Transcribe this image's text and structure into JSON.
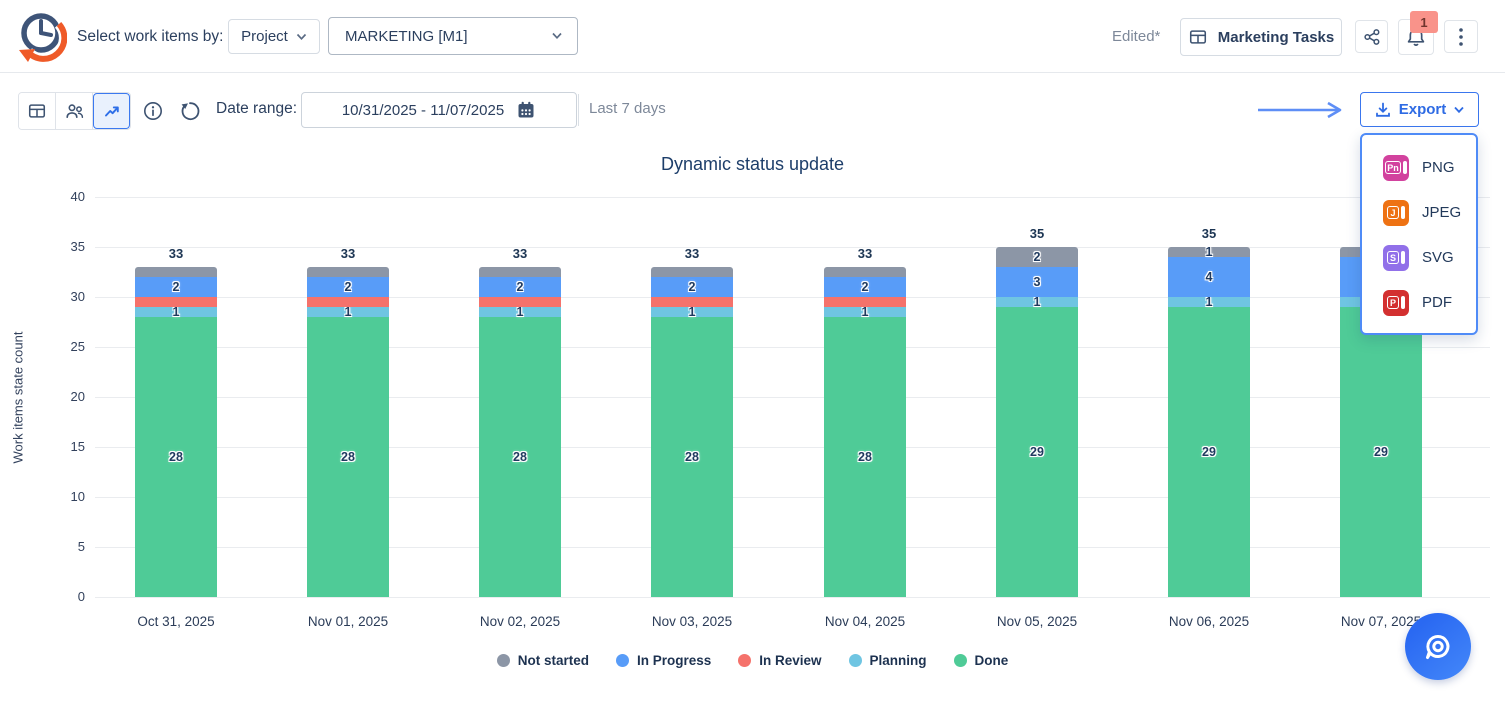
{
  "header": {
    "select_label": "Select work items by:",
    "project_dropdown": "Project",
    "project_value": "MARKETING [M1]",
    "edited_label": "Edited*",
    "board_button": "Marketing Tasks",
    "notification_count": "1"
  },
  "toolbar": {
    "date_range_label": "Date range:",
    "date_range_value": "10/31/2025 - 11/07/2025",
    "last_range_label": "Last 7 days",
    "export_label": "Export"
  },
  "export_menu": {
    "items": [
      {
        "label": "PNG",
        "icon_letters": "Pn",
        "color": "#d2429e"
      },
      {
        "label": "JPEG",
        "icon_letters": "J",
        "color": "#ee7213"
      },
      {
        "label": "SVG",
        "icon_letters": "S",
        "color": "#9170e9"
      },
      {
        "label": "PDF",
        "icon_letters": "P",
        "color": "#d33030"
      }
    ]
  },
  "chart_data": {
    "type": "bar",
    "stacked": true,
    "title": "Dynamic status update",
    "xlabel": "",
    "ylabel": "Work items state count",
    "ylim": [
      0,
      40
    ],
    "yticks": [
      0,
      5,
      10,
      15,
      20,
      25,
      30,
      35,
      40
    ],
    "grid": true,
    "legend_position": "bottom",
    "categories": [
      "Oct 31, 2025",
      "Nov 01, 2025",
      "Nov 02, 2025",
      "Nov 03, 2025",
      "Nov 04, 2025",
      "Nov 05, 2025",
      "Nov 06, 2025",
      "Nov 07, 2025"
    ],
    "totals": [
      33,
      33,
      33,
      33,
      33,
      35,
      35,
      35
    ],
    "series": [
      {
        "name": "Done",
        "color": "#4fcb97",
        "values": [
          28,
          28,
          28,
          28,
          28,
          29,
          29,
          29
        ],
        "labels_shown": [
          true,
          true,
          true,
          true,
          true,
          true,
          true,
          true
        ]
      },
      {
        "name": "Planning",
        "color": "#6fc5e2",
        "values": [
          1,
          1,
          1,
          1,
          1,
          1,
          1,
          1
        ],
        "labels_shown": [
          true,
          true,
          true,
          true,
          true,
          true,
          true,
          true
        ]
      },
      {
        "name": "In Review",
        "color": "#f5726b",
        "values": [
          1,
          1,
          1,
          1,
          1,
          0,
          0,
          0
        ],
        "labels_shown": [
          false,
          false,
          false,
          false,
          false,
          false,
          false,
          false
        ]
      },
      {
        "name": "In Progress",
        "color": "#589cf8",
        "values": [
          2,
          2,
          2,
          2,
          2,
          3,
          4,
          4
        ],
        "labels_shown": [
          true,
          true,
          true,
          true,
          true,
          true,
          true,
          true
        ]
      },
      {
        "name": "Not started",
        "color": "#8c96a6",
        "values": [
          1,
          1,
          1,
          1,
          1,
          2,
          1,
          1
        ],
        "labels_shown": [
          false,
          false,
          false,
          false,
          false,
          true,
          true,
          true
        ]
      }
    ],
    "legend": [
      "Not started",
      "In Progress",
      "In Review",
      "Planning",
      "Done"
    ]
  },
  "colors": {
    "accent_blue": "#2e6be4",
    "navy_text": "#2b3f5e",
    "badge_bg": "#f9938a",
    "dropdown_border": "#4f8bf7"
  }
}
